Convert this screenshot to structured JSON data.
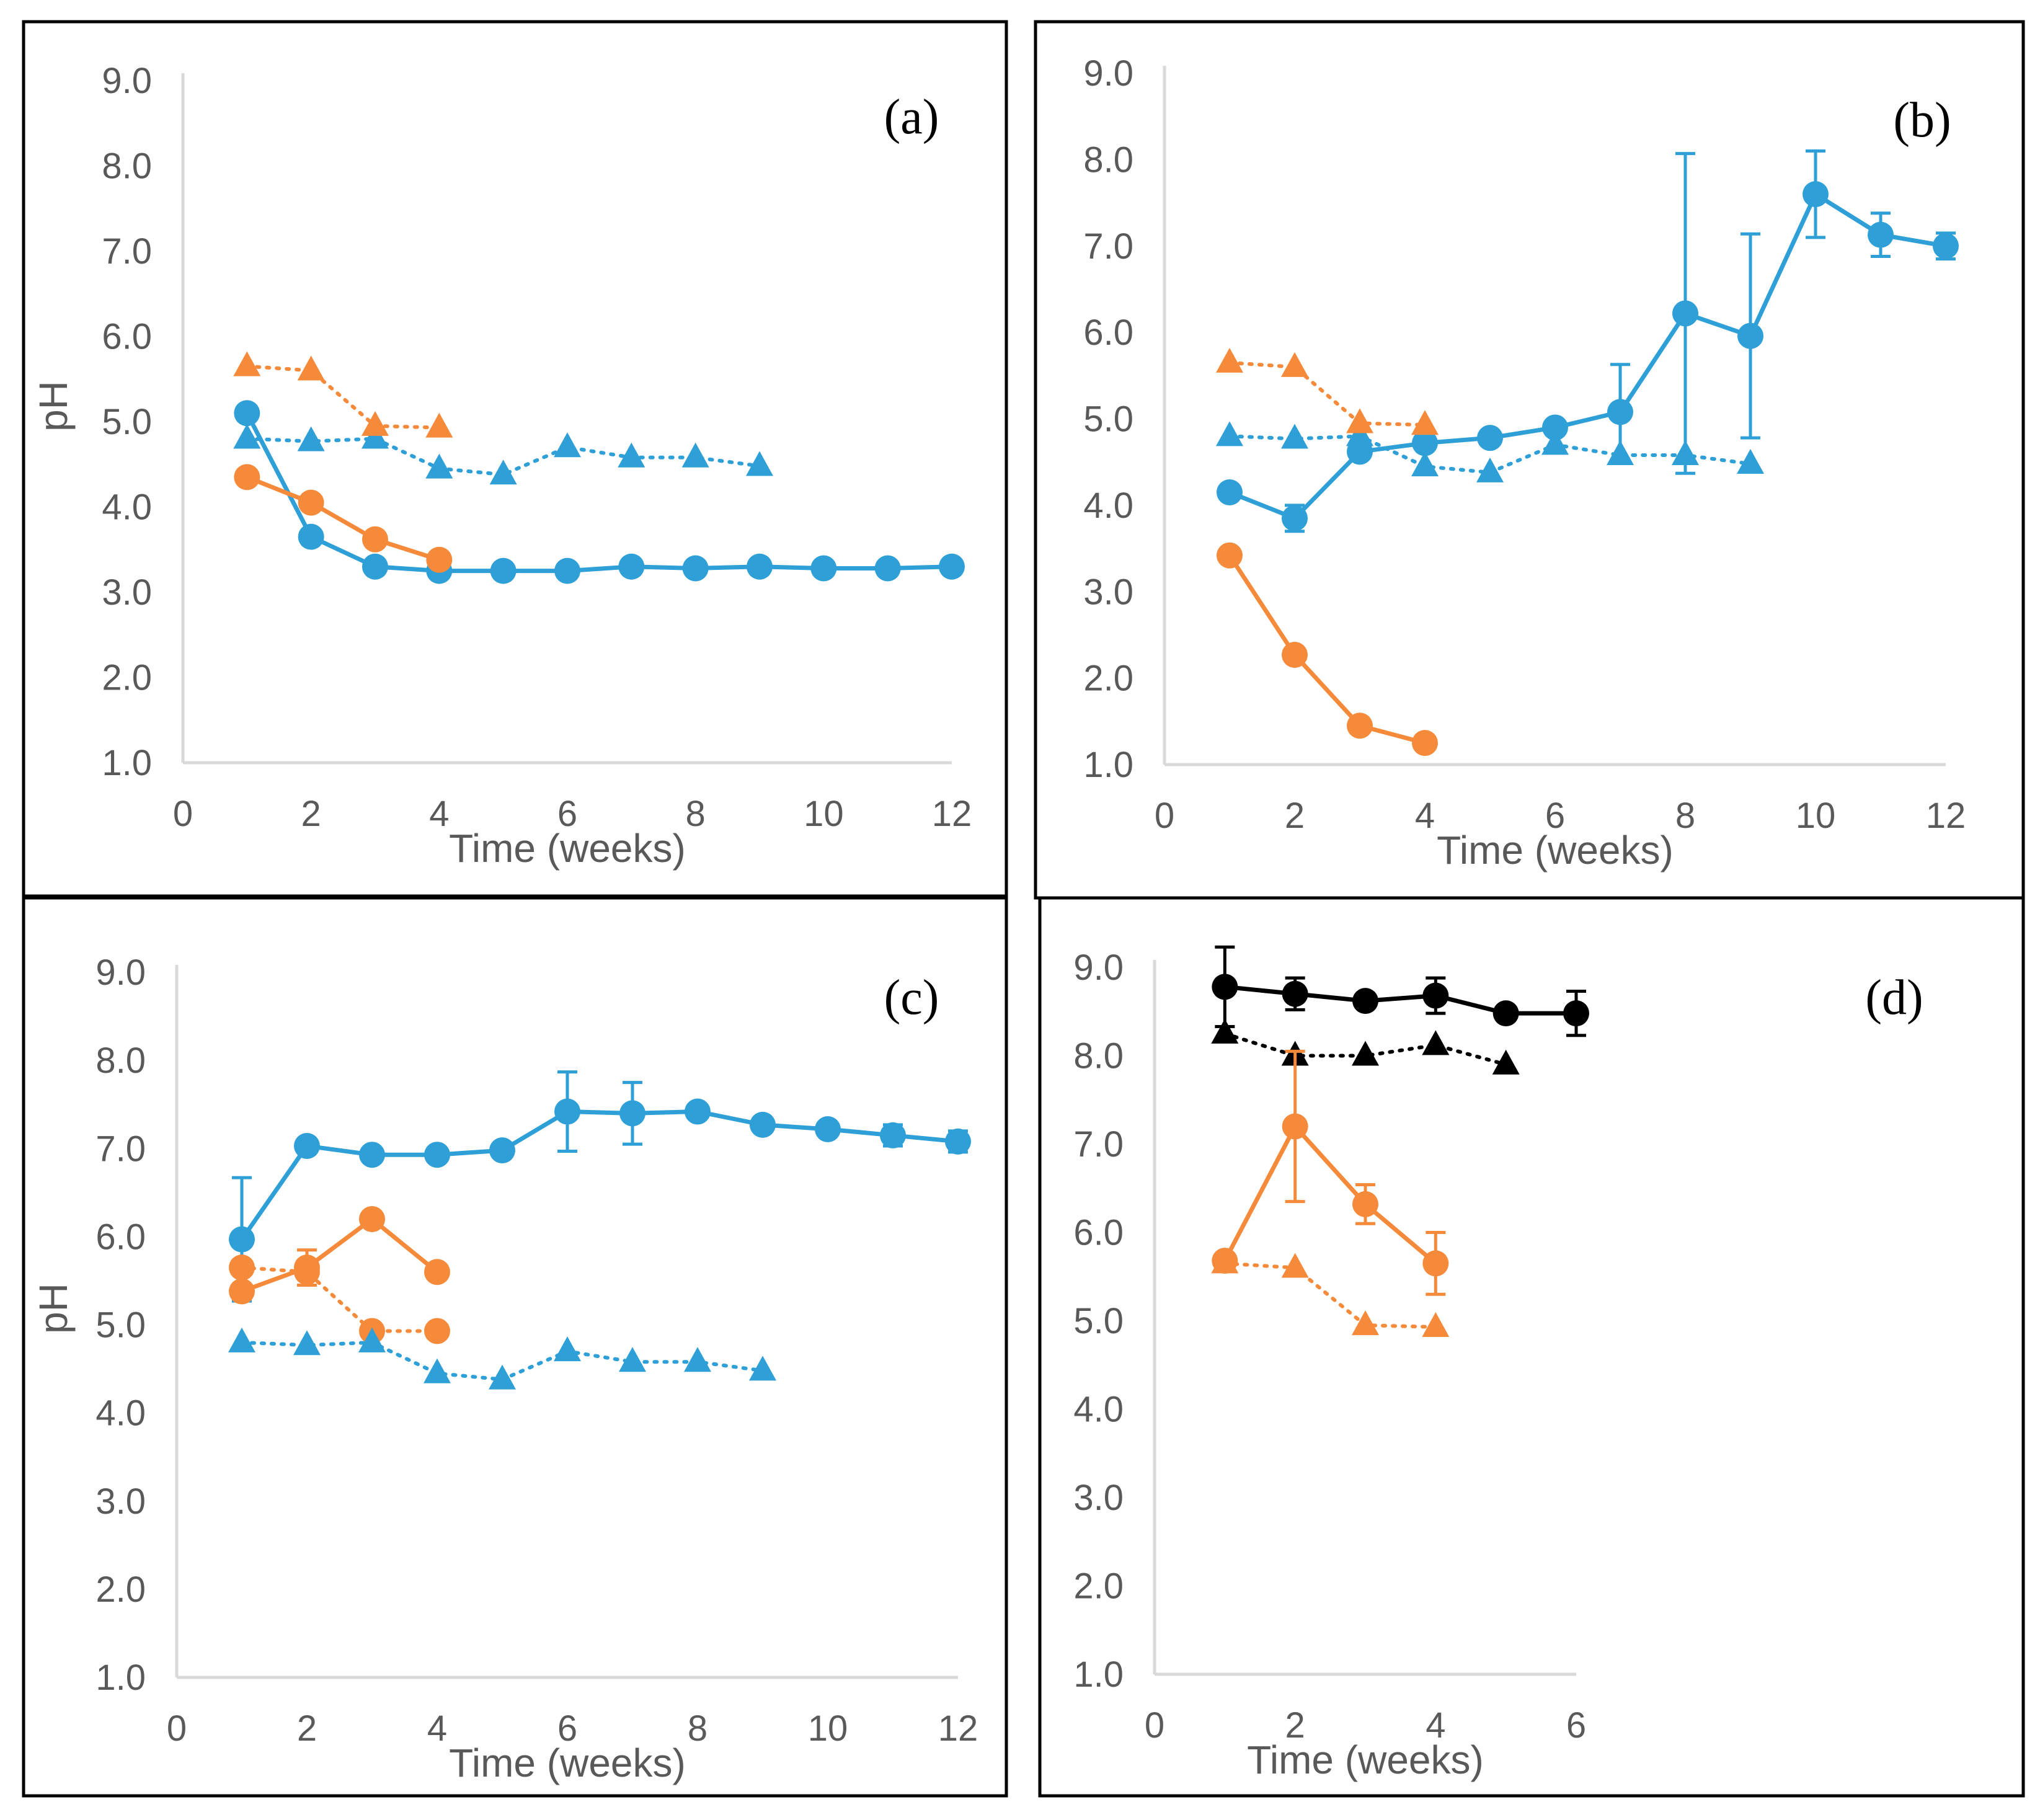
{
  "chart_data": [
    {
      "type": "line",
      "panel_label": "(a)",
      "xlabel": "Time (weeks)",
      "ylabel": "pH",
      "xlim": [
        0,
        12
      ],
      "ylim": [
        1.0,
        9.0
      ],
      "xticks": [
        "0",
        "2",
        "4",
        "6",
        "8",
        "10",
        "12"
      ],
      "yticks": [
        "1.0",
        "2.0",
        "3.0",
        "4.0",
        "5.0",
        "6.0",
        "7.0",
        "8.0",
        "9.0"
      ],
      "series": [
        {
          "name": "blue-circle-solid",
          "color": "#2e9fd7",
          "marker": "circle",
          "line": "solid",
          "x": [
            1,
            2,
            3,
            4,
            5,
            6,
            7,
            8,
            9,
            10,
            11,
            12
          ],
          "y": [
            5.1,
            3.65,
            3.3,
            3.25,
            3.25,
            3.25,
            3.3,
            3.28,
            3.3,
            3.28,
            3.28,
            3.3
          ]
        },
        {
          "name": "orange-circle-solid",
          "color": "#f58a3a",
          "marker": "circle",
          "line": "solid",
          "x": [
            1,
            2,
            3,
            4
          ],
          "y": [
            4.35,
            4.05,
            3.62,
            3.38
          ]
        },
        {
          "name": "blue-triangle-dotted",
          "color": "#2e9fd7",
          "marker": "triangle",
          "line": "dotted",
          "x": [
            1,
            2,
            3,
            4,
            5,
            6,
            7,
            8,
            9
          ],
          "y": [
            4.8,
            4.77,
            4.8,
            4.45,
            4.38,
            4.7,
            4.58,
            4.58,
            4.48
          ]
        },
        {
          "name": "orange-triangle-dotted",
          "color": "#f58a3a",
          "marker": "triangle",
          "line": "dotted",
          "x": [
            1,
            2,
            3,
            4
          ],
          "y": [
            5.65,
            5.6,
            4.95,
            4.93
          ]
        }
      ]
    },
    {
      "type": "line",
      "panel_label": "(b)",
      "xlabel": "Time (weeks)",
      "ylabel": "",
      "xlim": [
        0,
        12
      ],
      "ylim": [
        1.0,
        9.0
      ],
      "xticks": [
        "0",
        "2",
        "4",
        "6",
        "8",
        "10",
        "12"
      ],
      "yticks": [
        "1.0",
        "2.0",
        "3.0",
        "4.0",
        "5.0",
        "6.0",
        "7.0",
        "8.0",
        "9.0"
      ],
      "series": [
        {
          "name": "blue-circle-solid",
          "color": "#2e9fd7",
          "marker": "circle",
          "line": "solid",
          "x": [
            1,
            2,
            3,
            4,
            5,
            6,
            7,
            8,
            9,
            10,
            11,
            12
          ],
          "y": [
            4.15,
            3.85,
            4.62,
            4.72,
            4.78,
            4.9,
            5.08,
            6.22,
            5.96,
            7.6,
            7.13,
            7.0
          ],
          "err": [
            0.0,
            0.15,
            0.0,
            0.0,
            0.0,
            0.0,
            0.55,
            1.85,
            1.18,
            0.5,
            0.25,
            0.15
          ]
        },
        {
          "name": "orange-circle-solid",
          "color": "#f58a3a",
          "marker": "circle",
          "line": "solid",
          "x": [
            1,
            2,
            3,
            4
          ],
          "y": [
            3.42,
            2.27,
            1.45,
            1.25
          ]
        },
        {
          "name": "blue-triangle-dotted",
          "color": "#2e9fd7",
          "marker": "triangle",
          "line": "dotted",
          "x": [
            1,
            2,
            3,
            4,
            5,
            6,
            7,
            8,
            9
          ],
          "y": [
            4.8,
            4.77,
            4.8,
            4.45,
            4.38,
            4.7,
            4.58,
            4.58,
            4.48
          ]
        },
        {
          "name": "orange-triangle-dotted",
          "color": "#f58a3a",
          "marker": "triangle",
          "line": "dotted",
          "x": [
            1,
            2,
            3,
            4
          ],
          "y": [
            5.65,
            5.6,
            4.95,
            4.93
          ]
        }
      ]
    },
    {
      "type": "line",
      "panel_label": "(c)",
      "xlabel": "Time (weeks)",
      "ylabel": "pH",
      "xlim": [
        0,
        12
      ],
      "ylim": [
        1.0,
        9.0
      ],
      "xticks": [
        "0",
        "2",
        "4",
        "6",
        "8",
        "10",
        "12"
      ],
      "yticks": [
        "1.0",
        "2.0",
        "3.0",
        "4.0",
        "5.0",
        "6.0",
        "7.0",
        "8.0",
        "9.0"
      ],
      "series": [
        {
          "name": "blue-circle-solid",
          "color": "#2e9fd7",
          "marker": "circle",
          "line": "solid",
          "x": [
            1,
            2,
            3,
            4,
            5,
            6,
            7,
            8,
            9,
            10,
            11,
            12
          ],
          "y": [
            5.97,
            7.03,
            6.93,
            6.93,
            6.98,
            7.42,
            7.4,
            7.42,
            7.27,
            7.22,
            7.15,
            7.08
          ],
          "err": [
            0.7,
            0.0,
            0.0,
            0.0,
            0.0,
            0.45,
            0.35,
            0.0,
            0.0,
            0.0,
            0.12,
            0.12
          ]
        },
        {
          "name": "orange-circle-solid",
          "color": "#f58a3a",
          "marker": "circle",
          "line": "solid",
          "x": [
            1,
            2,
            3,
            4
          ],
          "y": [
            5.38,
            5.65,
            6.2,
            5.6
          ],
          "err": [
            0.0,
            0.2,
            0.0,
            0.0
          ]
        },
        {
          "name": "orange-circle-dotted",
          "color": "#f58a3a",
          "marker": "circle",
          "line": "dotted",
          "x": [
            1,
            2,
            3,
            4
          ],
          "y": [
            5.65,
            5.6,
            4.93,
            4.93
          ]
        },
        {
          "name": "blue-triangle-dotted",
          "color": "#2e9fd7",
          "marker": "triangle",
          "line": "dotted",
          "x": [
            1,
            2,
            3,
            4,
            5,
            6,
            7,
            8,
            9
          ],
          "y": [
            4.8,
            4.77,
            4.8,
            4.45,
            4.38,
            4.7,
            4.58,
            4.58,
            4.48
          ]
        }
      ]
    },
    {
      "type": "line",
      "panel_label": "(d)",
      "xlabel": "Time (weeks)",
      "ylabel": "",
      "xlim": [
        0,
        6
      ],
      "ylim": [
        1.0,
        9.0
      ],
      "xticks": [
        "0",
        "2",
        "4",
        "6"
      ],
      "yticks": [
        "1.0",
        "2.0",
        "3.0",
        "4.0",
        "5.0",
        "6.0",
        "7.0",
        "8.0",
        "9.0"
      ],
      "series": [
        {
          "name": "black-circle-solid",
          "color": "#000000",
          "marker": "circle",
          "line": "solid",
          "x": [
            1,
            2,
            3,
            4,
            5,
            6
          ],
          "y": [
            8.78,
            8.7,
            8.62,
            8.68,
            8.48,
            8.48
          ],
          "err": [
            0.45,
            0.18,
            0.0,
            0.2,
            0.0,
            0.25
          ]
        },
        {
          "name": "black-triangle-dotted",
          "color": "#000000",
          "marker": "triangle",
          "line": "dotted",
          "x": [
            1,
            2,
            3,
            4,
            5
          ],
          "y": [
            8.25,
            8.0,
            8.0,
            8.12,
            7.9
          ]
        },
        {
          "name": "orange-circle-solid",
          "color": "#f58a3a",
          "marker": "circle",
          "line": "solid",
          "x": [
            1,
            2,
            3,
            4
          ],
          "y": [
            5.68,
            7.2,
            6.32,
            5.65
          ],
          "err": [
            0.0,
            0.85,
            0.22,
            0.35
          ]
        },
        {
          "name": "orange-triangle-dotted",
          "color": "#f58a3a",
          "marker": "triangle",
          "line": "dotted",
          "x": [
            1,
            2,
            3,
            4
          ],
          "y": [
            5.65,
            5.6,
            4.95,
            4.93
          ]
        }
      ]
    }
  ]
}
